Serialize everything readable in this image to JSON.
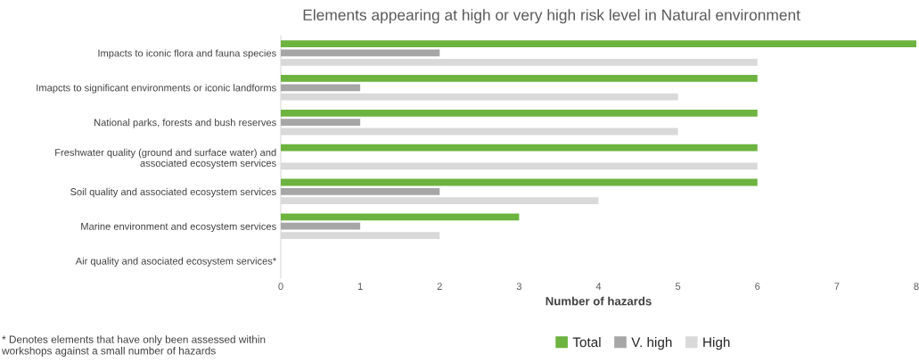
{
  "chart_data": {
    "type": "bar",
    "orientation": "horizontal",
    "title": "Elements appearing at high or very high risk level in Natural environment",
    "xlabel": "Number of hazards",
    "categories": [
      "Impacts to iconic flora and fauna species",
      "Imapcts to significant environments or iconic landforms",
      "National parks, forests and bush reserves",
      "Freshwater quality (ground and surface water) and\nassociated ecosystem services",
      "Soil quality and associated ecosystem services",
      "Marine environment and ecosystem services",
      "Air quality and asociated ecosystem services*"
    ],
    "series": [
      {
        "name": "Total",
        "color": "#6cb33f",
        "values": [
          8,
          6,
          6,
          6,
          6,
          3,
          0
        ]
      },
      {
        "name": "V. high",
        "color": "#a6a6a6",
        "values": [
          2,
          1,
          1,
          0,
          2,
          1,
          0
        ]
      },
      {
        "name": "High",
        "color": "#d9d9d9",
        "values": [
          6,
          5,
          5,
          6,
          4,
          2,
          0
        ]
      }
    ],
    "xlim": [
      0,
      8
    ],
    "xticks": [
      0,
      1,
      2,
      3,
      4,
      5,
      6,
      7,
      8
    ],
    "grid": false,
    "legend": "bottom",
    "annotations": [
      "* Denotes elements that have only been assessed within\nworkshops against a small number of hazards"
    ]
  }
}
